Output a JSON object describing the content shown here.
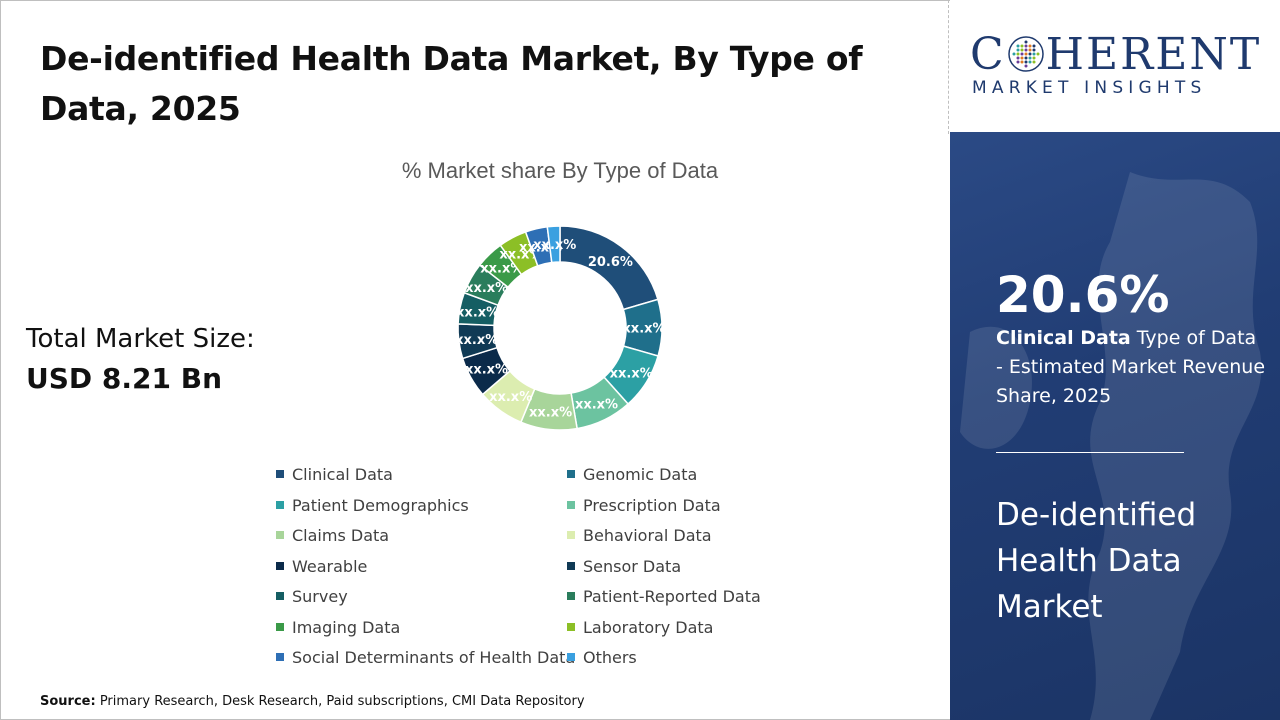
{
  "header": {
    "title": "De-identified Health Data Market, By Type of Data, 2025"
  },
  "market_size": {
    "label": "Total Market Size:",
    "value": "USD 8.21 Bn"
  },
  "source": {
    "label": "Source:",
    "text": " Primary Research, Desk Research, Paid subscriptions, CMI Data Repository"
  },
  "logo": {
    "line1_pre": "C",
    "line1_post": "HERENT",
    "line2": "MARKET INSIGHTS"
  },
  "highlight": {
    "value": "20.6%",
    "segment": "Clinical Data",
    "desc": " Type of Data - Estimated Market Revenue Share, 2025",
    "market_name": "De-identified Health Data Market"
  },
  "chart_data": {
    "type": "pie",
    "title": "% Market share By Type of Data",
    "donut": true,
    "legend_position": "bottom",
    "categories": [
      "Clinical Data",
      "Genomic Data",
      "Patient Demographics",
      "Prescription Data",
      "Claims Data",
      "Behavioral Data",
      "Wearable",
      "Sensor Data",
      "Survey",
      "Patient-Reported Data",
      "Imaging Data",
      "Laboratory Data",
      "Social Determinants of Health Data",
      "Others"
    ],
    "values": [
      20.6,
      9.0,
      9.0,
      9.0,
      9.0,
      7.5,
      6.5,
      5.5,
      5.0,
      5.0,
      4.5,
      4.5,
      3.5,
      2.0
    ],
    "labels": [
      "20.6%",
      "xx.x%",
      "xx.x%",
      "xx.x%",
      "xx.x%",
      "xx.x%",
      "xx.x%",
      "xx.x%",
      "xx.x%",
      "xx.x%",
      "xx.x%",
      "xx.x%",
      "xx.x%",
      "xx.x%"
    ],
    "colors": [
      "#1f4e79",
      "#1f6f8b",
      "#2ca0a4",
      "#6cc3a0",
      "#a8d59a",
      "#dcedb0",
      "#0b2a4a",
      "#103a55",
      "#155e63",
      "#2a7d5c",
      "#3a9a48",
      "#8cbf26",
      "#2e6fb5",
      "#3aa0e0"
    ]
  }
}
